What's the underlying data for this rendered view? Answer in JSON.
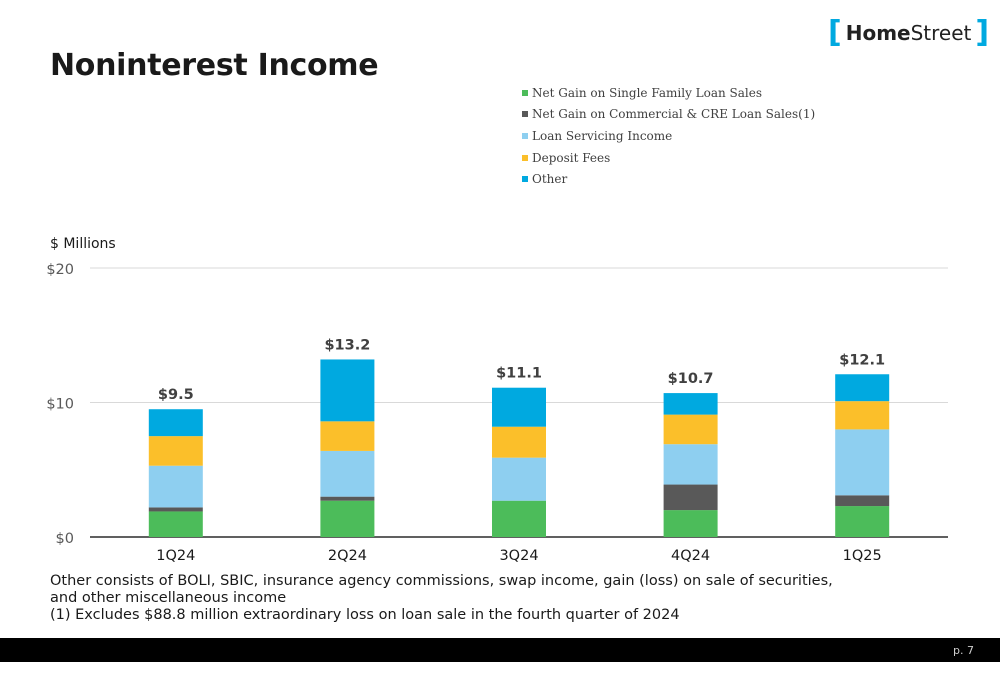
{
  "title": "Noninterest Income",
  "logo": {
    "open": "[",
    "home": "Home",
    "street": "Street",
    "close": "]"
  },
  "units_label": "$ Millions",
  "footnotes": [
    "Other consists of BOLI, SBIC, insurance agency commissions, swap income, gain (loss) on sale of securities,",
    "and other miscellaneous income",
    "(1) Excludes $88.8 million extraordinary loss on loan sale in the fourth quarter of 2024"
  ],
  "page_number": "p. 7",
  "chart_data": {
    "type": "bar",
    "stacked": true,
    "categories": [
      "1Q24",
      "2Q24",
      "3Q24",
      "4Q24",
      "1Q25"
    ],
    "series": [
      {
        "name": "Net Gain on Single Family Loan Sales",
        "color": "#4cbc5a",
        "values": [
          1.9,
          2.7,
          2.7,
          2.0,
          2.3
        ]
      },
      {
        "name": "Net Gain on Commercial & CRE Loan Sales(1)",
        "color": "#595959",
        "values": [
          0.3,
          0.3,
          0.0,
          1.9,
          0.8
        ]
      },
      {
        "name": "Loan Servicing Income",
        "color": "#8ecff0",
        "values": [
          3.1,
          3.4,
          3.2,
          3.0,
          4.9
        ]
      },
      {
        "name": "Deposit Fees",
        "color": "#fbbf2a",
        "values": [
          2.2,
          2.2,
          2.3,
          2.2,
          2.1
        ]
      },
      {
        "name": "Other",
        "color": "#00a9e0",
        "values": [
          2.0,
          4.6,
          2.9,
          1.6,
          2.0
        ]
      }
    ],
    "totals": [
      "$9.5",
      "$13.2",
      "$11.1",
      "$10.7",
      "$12.1"
    ],
    "y_ticks": [
      {
        "value": 0,
        "label": "$0"
      },
      {
        "value": 10,
        "label": "$10"
      },
      {
        "value": 20,
        "label": "$20"
      }
    ],
    "ylim": [
      0,
      20
    ],
    "grid": true,
    "legend_position": "top-right"
  }
}
